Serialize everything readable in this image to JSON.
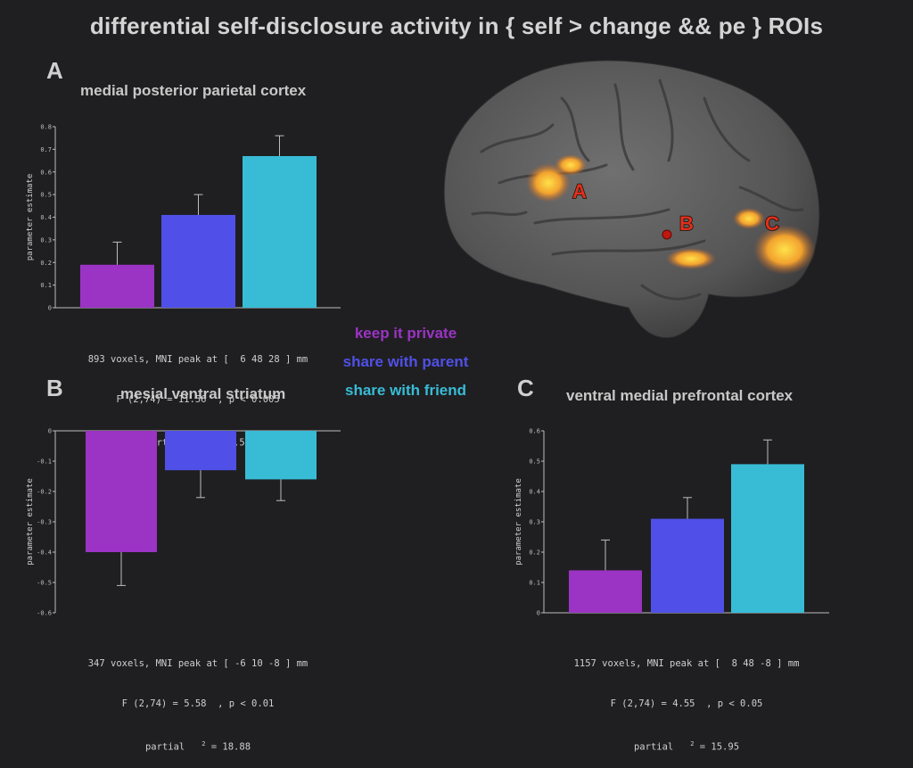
{
  "title": "differential self-disclosure activity in { self > change && pe } ROIs",
  "legend": [
    {
      "label": "keep it private",
      "color": "#9b33c4"
    },
    {
      "label": "share with parent",
      "color": "#5050e8"
    },
    {
      "label": "share with friend",
      "color": "#38bcd6"
    }
  ],
  "brain_labels": [
    "A",
    "B",
    "C"
  ],
  "chart_data": [
    {
      "type": "bar",
      "panel": "A",
      "title": "medial posterior parietal cortex",
      "ylabel": "parameter estimate",
      "ylim": [
        0,
        0.8
      ],
      "yticks": [
        "0",
        "0.1",
        "0.2",
        "0.3",
        "0.4",
        "0.5",
        "0.6",
        "0.7",
        "0.8"
      ],
      "categories": [
        "keep it private",
        "share with parent",
        "share with friend"
      ],
      "values": [
        0.19,
        0.41,
        0.67
      ],
      "errors": [
        0.1,
        0.09,
        0.09
      ],
      "stats": {
        "line1": "893 voxels, MNI peak at [  6 48 28 ] mm",
        "line2": "F (2,74) = 11.56  , p < 0.005",
        "line3a": "partial",
        "sup": "2",
        "line3b": " = 32.51"
      }
    },
    {
      "type": "bar",
      "panel": "B",
      "title": "mesial ventral striatum",
      "ylabel": "parameter estimate",
      "ylim": [
        -0.6,
        0
      ],
      "yticks": [
        "-0.6",
        "-0.5",
        "-0.4",
        "-0.3",
        "-0.2",
        "-0.1",
        "0"
      ],
      "categories": [
        "keep it private",
        "share with parent",
        "share with friend"
      ],
      "values": [
        -0.4,
        -0.13,
        -0.16
      ],
      "errors": [
        0.11,
        0.09,
        0.07
      ],
      "stats": {
        "line1": "347 voxels, MNI peak at [ -6 10 -8 ] mm",
        "line2": "F (2,74) = 5.58  , p < 0.01",
        "line3a": "partial",
        "sup": "2",
        "line3b": " = 18.88"
      }
    },
    {
      "type": "bar",
      "panel": "C",
      "title": "ventral medial prefrontal cortex",
      "ylabel": "parameter estimate",
      "ylim": [
        0,
        0.6
      ],
      "yticks": [
        "0",
        "0.1",
        "0.2",
        "0.3",
        "0.4",
        "0.5",
        "0.6"
      ],
      "categories": [
        "keep it private",
        "share with parent",
        "share with friend"
      ],
      "values": [
        0.14,
        0.31,
        0.49
      ],
      "errors": [
        0.1,
        0.07,
        0.08
      ],
      "stats": {
        "line1": "1157 voxels, MNI peak at [  8 48 -8 ] mm",
        "line2": "F (2,74) = 4.55  , p < 0.05",
        "line3a": "partial",
        "sup": "2",
        "line3b": " = 15.95"
      }
    }
  ]
}
